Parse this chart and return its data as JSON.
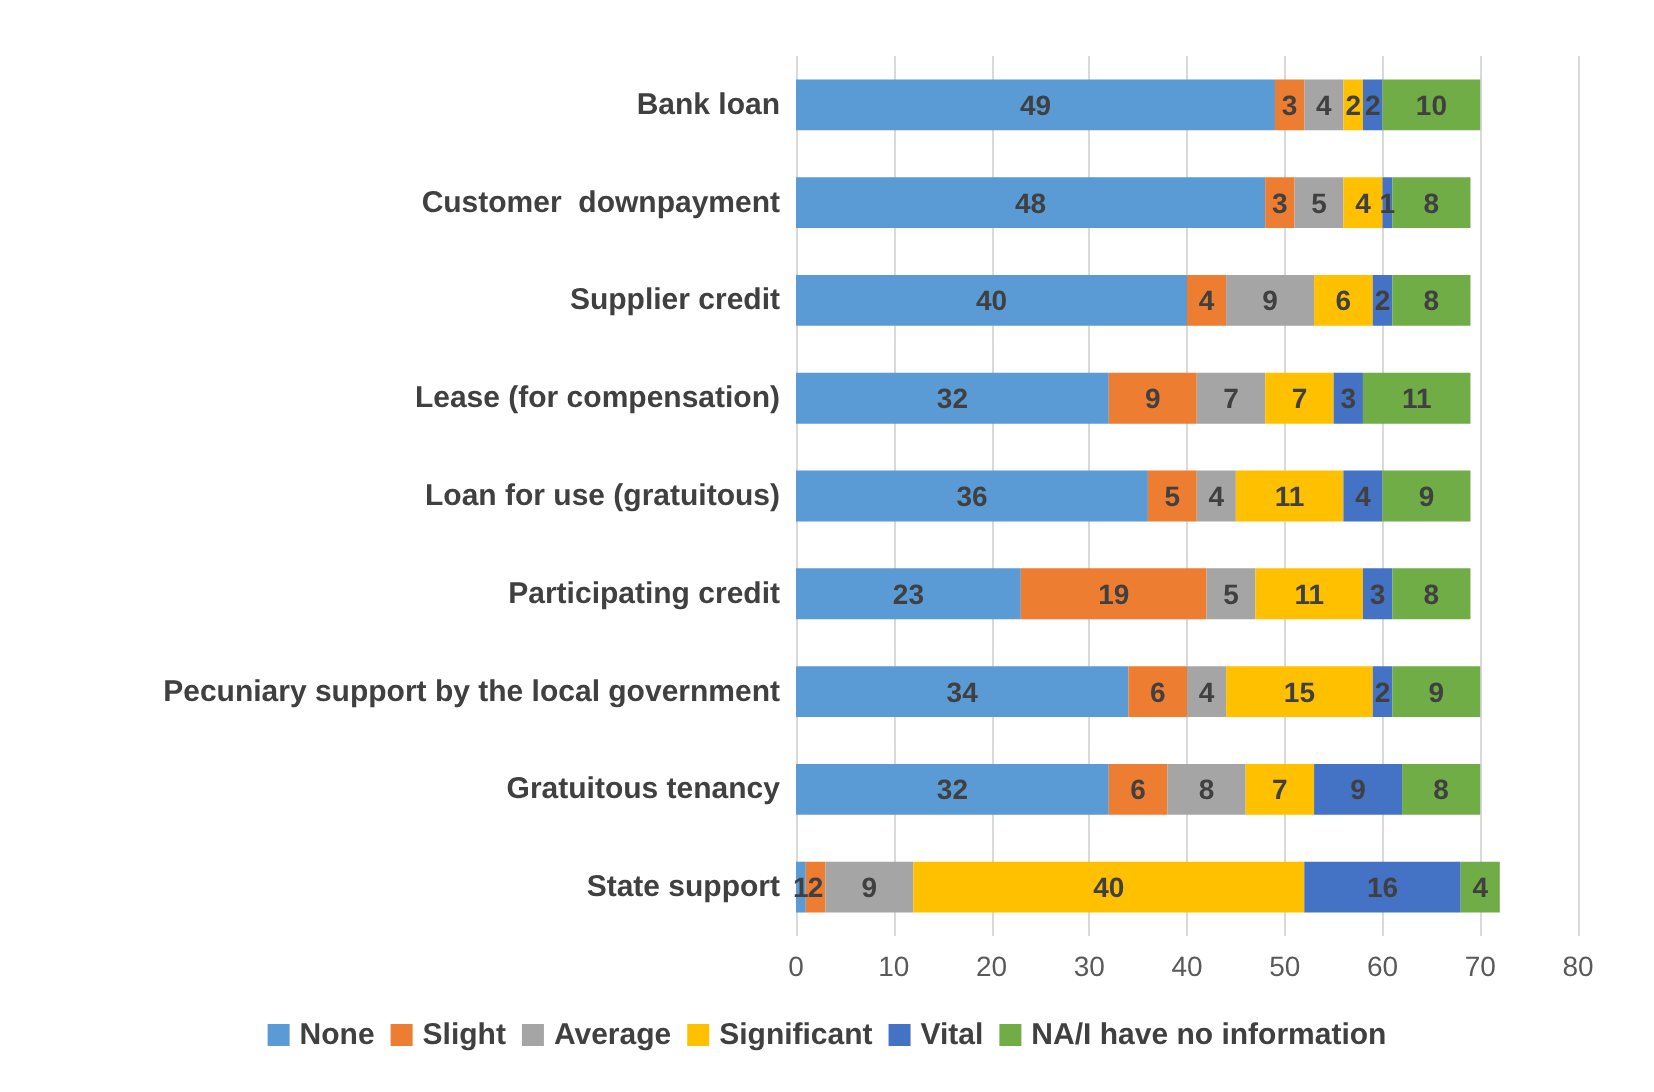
{
  "chart_data": {
    "type": "bar",
    "orientation": "horizontal",
    "stacked": true,
    "data_labels": true,
    "grid": "x",
    "legend": "bottom",
    "categories": [
      "Bank loan",
      "Customer  downpayment",
      "Supplier credit",
      "Lease (for compensation)",
      "Loan for use (gratuitous)",
      "Participating credit",
      "Pecuniary support by the local government",
      "Gratuitous tenancy",
      "State support"
    ],
    "xlim": [
      0,
      80
    ],
    "xticks": [
      0,
      10,
      20,
      30,
      40,
      50,
      60,
      70,
      80
    ],
    "series": [
      {
        "name": "None",
        "color": "#5b9bd5",
        "values": [
          49,
          48,
          40,
          32,
          36,
          23,
          34,
          32,
          1
        ]
      },
      {
        "name": "Slight",
        "color": "#ed7d31",
        "values": [
          3,
          3,
          4,
          9,
          5,
          19,
          6,
          6,
          2
        ]
      },
      {
        "name": "Average",
        "color": "#a5a5a5",
        "values": [
          4,
          5,
          9,
          7,
          4,
          5,
          4,
          8,
          9
        ]
      },
      {
        "name": "Significant",
        "color": "#ffc000",
        "values": [
          2,
          4,
          6,
          7,
          11,
          11,
          15,
          7,
          40
        ]
      },
      {
        "name": "Vital",
        "color": "#4472c4",
        "values": [
          2,
          1,
          2,
          3,
          4,
          3,
          2,
          9,
          16
        ]
      },
      {
        "name": "NA/I have no information",
        "color": "#70ad47",
        "values": [
          10,
          8,
          8,
          11,
          9,
          8,
          9,
          8,
          4
        ]
      }
    ]
  }
}
